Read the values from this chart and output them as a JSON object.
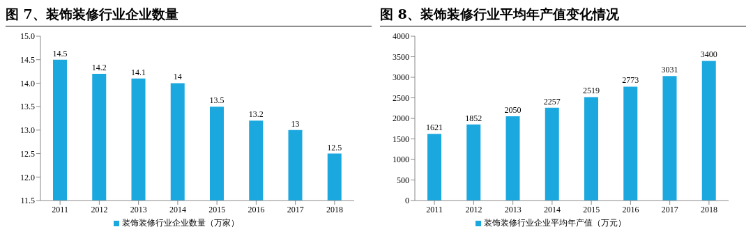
{
  "chart_data": [
    {
      "type": "bar",
      "title": "图 7、装饰装修行业企业数量",
      "categories": [
        "2011",
        "2012",
        "2013",
        "2014",
        "2015",
        "2016",
        "2017",
        "2018"
      ],
      "series": [
        {
          "name": "装饰装修行业企业数量（万家）",
          "color": "#1aa8df",
          "values": [
            14.5,
            14.2,
            14.1,
            14,
            13.5,
            13.2,
            13,
            12.5
          ]
        }
      ],
      "ylim": [
        11.5,
        15
      ],
      "yticks": [
        {
          "value": 11.5,
          "label": "11.5"
        },
        {
          "value": 12,
          "label": "12.0"
        },
        {
          "value": 12.5,
          "label": "12.5"
        },
        {
          "value": 13,
          "label": "13.0"
        },
        {
          "value": 13.5,
          "label": "13.5"
        },
        {
          "value": 14,
          "label": "14.0"
        },
        {
          "value": 14.5,
          "label": "14.5"
        },
        {
          "value": 15,
          "label": "15.0"
        }
      ],
      "data_labels": true,
      "legend": "bottom",
      "grid": false
    },
    {
      "type": "bar",
      "title": "图 8、装饰装修行业平均年产值变化情况",
      "categories": [
        "2011",
        "2012",
        "2013",
        "2014",
        "2015",
        "2016",
        "2017",
        "2018"
      ],
      "series": [
        {
          "name": "装饰装修行业企业平均年产值（万元）",
          "color": "#1aa8df",
          "values": [
            1621,
            1852,
            2050,
            2257,
            2519,
            2773,
            3031,
            3400
          ]
        }
      ],
      "ylim": [
        0,
        4000
      ],
      "yticks": [
        0,
        500,
        1000,
        1500,
        2000,
        2500,
        3000,
        3500,
        4000
      ],
      "data_labels": true,
      "legend": "bottom",
      "grid": false
    }
  ]
}
